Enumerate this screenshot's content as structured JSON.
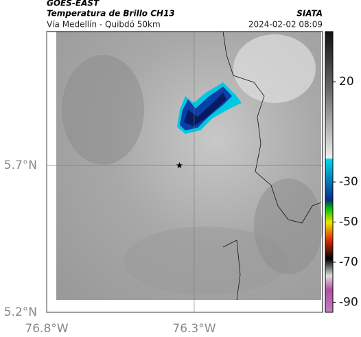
{
  "map": {
    "source": "GOES-EAST",
    "title": "Temperatura de Brillo CH13",
    "brand": "SIATA",
    "route": "Vía Medellín - Quibdó 50km",
    "timestamp": "2024-02-02 08:09",
    "xlim": [
      -76.8,
      -75.865
    ],
    "ylim": [
      5.2,
      6.156
    ],
    "xticks": [
      {
        "value": -76.8,
        "label": "76.8°W"
      },
      {
        "value": -76.3,
        "label": "76.3°W"
      }
    ],
    "yticks": [
      {
        "value": 5.2,
        "label": "5.2°N"
      },
      {
        "value": 5.7,
        "label": "5.7°N"
      }
    ],
    "marker": {
      "lon": -76.35,
      "lat": 5.7
    },
    "colorbar": {
      "lim": [
        45,
        -95
      ],
      "ticks": [
        20,
        -30,
        -50,
        -70,
        -90
      ]
    }
  }
}
